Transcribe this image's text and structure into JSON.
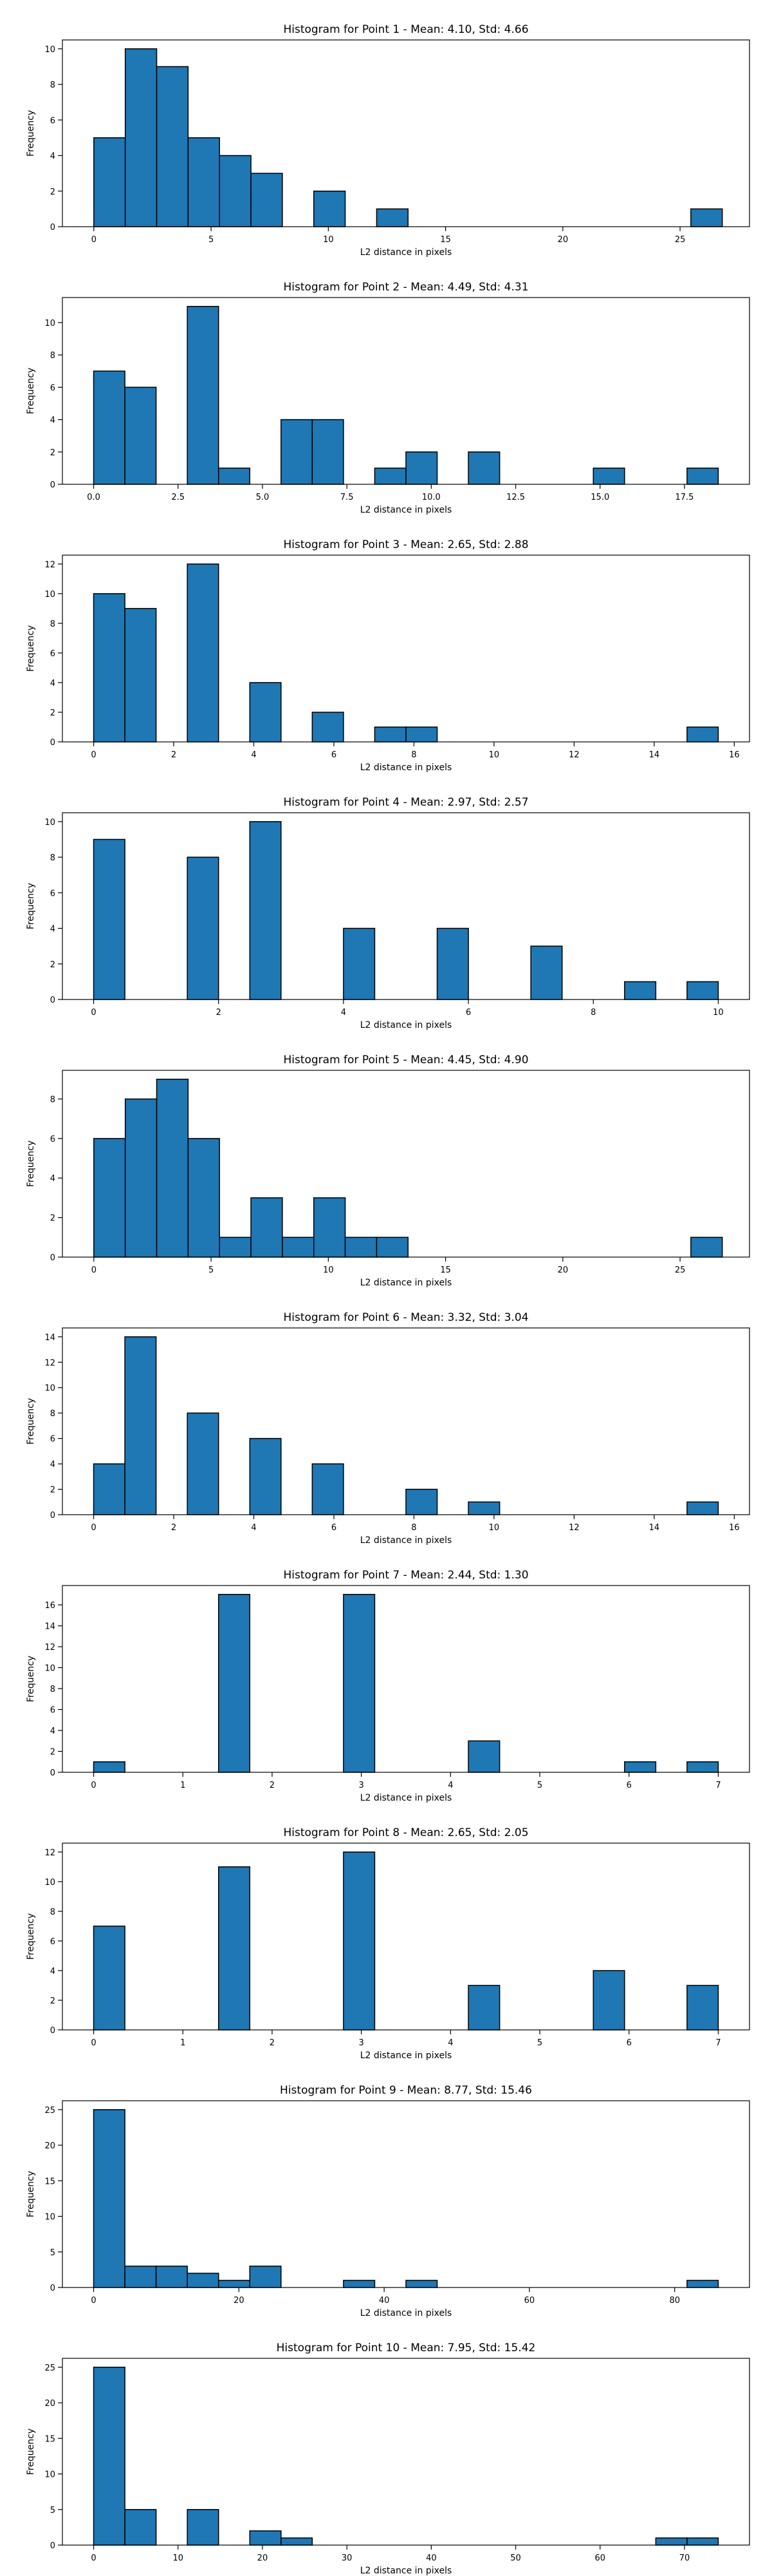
{
  "chart_data": [
    {
      "type": "bar",
      "title": "Histogram for Point 1 - Mean: 4.10, Std: 4.66",
      "xlabel": "L2 distance in pixels",
      "ylabel": "Frequency",
      "xlim": [
        -1.34,
        27.96
      ],
      "ylim": [
        0,
        10.5
      ],
      "xticks": [
        0,
        5,
        10,
        15,
        20,
        25
      ],
      "xtick_labels": [
        "0",
        "5",
        "10",
        "15",
        "20",
        "25"
      ],
      "yticks": [
        0,
        2,
        4,
        6,
        8,
        10
      ],
      "ytick_labels": [
        "0",
        "2",
        "4",
        "6",
        "8",
        "10"
      ],
      "bins": [
        0,
        1.34,
        2.68,
        4.02,
        5.36,
        6.7,
        8.04,
        9.38,
        10.72,
        12.06,
        13.4,
        14.74,
        16.08,
        17.42,
        18.76,
        20.1,
        21.44,
        22.78,
        24.12,
        25.46,
        26.8
      ],
      "counts": [
        5,
        10,
        9,
        5,
        4,
        3,
        0,
        2,
        0,
        1,
        0,
        0,
        0,
        0,
        0,
        0,
        0,
        0,
        0,
        1
      ],
      "color": "#1f77b4",
      "grid": false
    },
    {
      "type": "bar",
      "title": "Histogram for Point 2 - Mean: 4.49, Std: 4.31",
      "xlabel": "L2 distance in pixels",
      "ylabel": "Frequency",
      "xlim": [
        -0.925,
        19.425
      ],
      "ylim": [
        0,
        11.55
      ],
      "xticks": [
        0,
        2.5,
        5,
        7.5,
        10,
        12.5,
        15,
        17.5
      ],
      "xtick_labels": [
        "0.0",
        "2.5",
        "5.0",
        "7.5",
        "10.0",
        "12.5",
        "15.0",
        "17.5"
      ],
      "yticks": [
        0,
        2,
        4,
        6,
        8,
        10
      ],
      "ytick_labels": [
        "0",
        "2",
        "4",
        "6",
        "8",
        "10"
      ],
      "bins": [
        0,
        0.925,
        1.85,
        2.775,
        3.7,
        4.625,
        5.55,
        6.475,
        7.4,
        8.325,
        9.25,
        10.175,
        11.1,
        12.025,
        12.95,
        13.875,
        14.8,
        15.725,
        16.65,
        17.575,
        18.5
      ],
      "counts": [
        7,
        6,
        0,
        11,
        1,
        0,
        4,
        4,
        0,
        1,
        2,
        0,
        2,
        0,
        0,
        0,
        1,
        0,
        0,
        1
      ],
      "color": "#1f77b4",
      "grid": false
    },
    {
      "type": "bar",
      "title": "Histogram for Point 3 - Mean: 2.65, Std: 2.88",
      "xlabel": "L2 distance in pixels",
      "ylabel": "Frequency",
      "xlim": [
        -0.78,
        16.38
      ],
      "ylim": [
        0,
        12.6
      ],
      "xticks": [
        0,
        2,
        4,
        6,
        8,
        10,
        12,
        14,
        16
      ],
      "xtick_labels": [
        "0",
        "2",
        "4",
        "6",
        "8",
        "10",
        "12",
        "14",
        "16"
      ],
      "yticks": [
        0,
        2,
        4,
        6,
        8,
        10,
        12
      ],
      "ytick_labels": [
        "0",
        "2",
        "4",
        "6",
        "8",
        "10",
        "12"
      ],
      "bins": [
        0,
        0.78,
        1.56,
        2.34,
        3.12,
        3.9,
        4.68,
        5.46,
        6.24,
        7.02,
        7.8,
        8.58,
        9.36,
        10.14,
        10.92,
        11.7,
        12.48,
        13.26,
        14.04,
        14.82,
        15.6
      ],
      "counts": [
        10,
        9,
        0,
        12,
        0,
        4,
        0,
        2,
        0,
        1,
        1,
        0,
        0,
        0,
        0,
        0,
        0,
        0,
        0,
        1
      ],
      "color": "#1f77b4",
      "grid": false
    },
    {
      "type": "bar",
      "title": "Histogram for Point 4 - Mean: 2.97, Std: 2.57",
      "xlabel": "L2 distance in pixels",
      "ylabel": "Frequency",
      "xlim": [
        -0.5,
        10.5
      ],
      "ylim": [
        0,
        10.5
      ],
      "xticks": [
        0,
        2,
        4,
        6,
        8,
        10
      ],
      "xtick_labels": [
        "0",
        "2",
        "4",
        "6",
        "8",
        "10"
      ],
      "yticks": [
        0,
        2,
        4,
        6,
        8,
        10
      ],
      "ytick_labels": [
        "0",
        "2",
        "4",
        "6",
        "8",
        "10"
      ],
      "bins": [
        0,
        0.5,
        1,
        1.5,
        2,
        2.5,
        3,
        3.5,
        4,
        4.5,
        5,
        5.5,
        6,
        6.5,
        7,
        7.5,
        8,
        8.5,
        9,
        9.5,
        10
      ],
      "counts": [
        9,
        0,
        0,
        8,
        0,
        10,
        0,
        0,
        4,
        0,
        0,
        4,
        0,
        0,
        3,
        0,
        0,
        1,
        0,
        1
      ],
      "color": "#1f77b4",
      "grid": false
    },
    {
      "type": "bar",
      "title": "Histogram for Point 5 - Mean: 4.45, Std: 4.90",
      "xlabel": "L2 distance in pixels",
      "ylabel": "Frequency",
      "xlim": [
        -1.34,
        27.96
      ],
      "ylim": [
        0,
        9.45
      ],
      "xticks": [
        0,
        5,
        10,
        15,
        20,
        25
      ],
      "xtick_labels": [
        "0",
        "5",
        "10",
        "15",
        "20",
        "25"
      ],
      "yticks": [
        0,
        2,
        4,
        6,
        8
      ],
      "ytick_labels": [
        "0",
        "2",
        "4",
        "6",
        "8"
      ],
      "bins": [
        0,
        1.34,
        2.68,
        4.02,
        5.36,
        6.7,
        8.04,
        9.38,
        10.72,
        12.06,
        13.4,
        14.74,
        16.08,
        17.42,
        18.76,
        20.1,
        21.44,
        22.78,
        24.12,
        25.46,
        26.8
      ],
      "counts": [
        6,
        8,
        9,
        6,
        1,
        3,
        1,
        3,
        1,
        1,
        0,
        0,
        0,
        0,
        0,
        0,
        0,
        0,
        0,
        1
      ],
      "color": "#1f77b4",
      "grid": false
    },
    {
      "type": "bar",
      "title": "Histogram for Point 6 - Mean: 3.32, Std: 3.04",
      "xlabel": "L2 distance in pixels",
      "ylabel": "Frequency",
      "xlim": [
        -0.78,
        16.38
      ],
      "ylim": [
        0,
        14.7
      ],
      "xticks": [
        0,
        2,
        4,
        6,
        8,
        10,
        12,
        14,
        16
      ],
      "xtick_labels": [
        "0",
        "2",
        "4",
        "6",
        "8",
        "10",
        "12",
        "14",
        "16"
      ],
      "yticks": [
        0,
        2,
        4,
        6,
        8,
        10,
        12,
        14
      ],
      "ytick_labels": [
        "0",
        "2",
        "4",
        "6",
        "8",
        "10",
        "12",
        "14"
      ],
      "bins": [
        0,
        0.78,
        1.56,
        2.34,
        3.12,
        3.9,
        4.68,
        5.46,
        6.24,
        7.02,
        7.8,
        8.58,
        9.36,
        10.14,
        10.92,
        11.7,
        12.48,
        13.26,
        14.04,
        14.82,
        15.6
      ],
      "counts": [
        4,
        14,
        0,
        8,
        0,
        6,
        0,
        4,
        0,
        0,
        2,
        0,
        1,
        0,
        0,
        0,
        0,
        0,
        0,
        1
      ],
      "color": "#1f77b4",
      "grid": false
    },
    {
      "type": "bar",
      "title": "Histogram for Point 7 - Mean: 2.44, Std: 1.30",
      "xlabel": "L2 distance in pixels",
      "ylabel": "Frequency",
      "xlim": [
        -0.35,
        7.35
      ],
      "ylim": [
        0,
        17.85
      ],
      "xticks": [
        0,
        1,
        2,
        3,
        4,
        5,
        6,
        7
      ],
      "xtick_labels": [
        "0",
        "1",
        "2",
        "3",
        "4",
        "5",
        "6",
        "7"
      ],
      "yticks": [
        0,
        2,
        4,
        6,
        8,
        10,
        12,
        14,
        16
      ],
      "ytick_labels": [
        "0",
        "2",
        "4",
        "6",
        "8",
        "10",
        "12",
        "14",
        "16"
      ],
      "bins": [
        0,
        0.35,
        0.7,
        1.05,
        1.4,
        1.75,
        2.1,
        2.45,
        2.8,
        3.15,
        3.5,
        3.85,
        4.2,
        4.55,
        4.9,
        5.25,
        5.6,
        5.95,
        6.3,
        6.65,
        7.0
      ],
      "counts": [
        1,
        0,
        0,
        0,
        17,
        0,
        0,
        0,
        17,
        0,
        0,
        0,
        3,
        0,
        0,
        0,
        0,
        1,
        0,
        1
      ],
      "color": "#1f77b4",
      "grid": false
    },
    {
      "type": "bar",
      "title": "Histogram for Point 8 - Mean: 2.65, Std: 2.05",
      "xlabel": "L2 distance in pixels",
      "ylabel": "Frequency",
      "xlim": [
        -0.35,
        7.35
      ],
      "ylim": [
        0,
        12.6
      ],
      "xticks": [
        0,
        1,
        2,
        3,
        4,
        5,
        6,
        7
      ],
      "xtick_labels": [
        "0",
        "1",
        "2",
        "3",
        "4",
        "5",
        "6",
        "7"
      ],
      "yticks": [
        0,
        2,
        4,
        6,
        8,
        10,
        12
      ],
      "ytick_labels": [
        "0",
        "2",
        "4",
        "6",
        "8",
        "10",
        "12"
      ],
      "bins": [
        0,
        0.35,
        0.7,
        1.05,
        1.4,
        1.75,
        2.1,
        2.45,
        2.8,
        3.15,
        3.5,
        3.85,
        4.2,
        4.55,
        4.9,
        5.25,
        5.6,
        5.95,
        6.3,
        6.65,
        7.0
      ],
      "counts": [
        7,
        0,
        0,
        0,
        11,
        0,
        0,
        0,
        12,
        0,
        0,
        0,
        3,
        0,
        0,
        0,
        4,
        0,
        0,
        3
      ],
      "color": "#1f77b4",
      "grid": false
    },
    {
      "type": "bar",
      "title": "Histogram for Point 9 - Mean: 8.77, Std: 15.46",
      "xlabel": "L2 distance in pixels",
      "ylabel": "Frequency",
      "xlim": [
        -4.3,
        90.3
      ],
      "ylim": [
        0,
        26.25
      ],
      "xticks": [
        0,
        20,
        40,
        60,
        80
      ],
      "xtick_labels": [
        "0",
        "20",
        "40",
        "60",
        "80"
      ],
      "yticks": [
        0,
        5,
        10,
        15,
        20,
        25
      ],
      "ytick_labels": [
        "0",
        "5",
        "10",
        "15",
        "20",
        "25"
      ],
      "bins": [
        0,
        4.3,
        8.6,
        12.9,
        17.2,
        21.5,
        25.8,
        30.1,
        34.4,
        38.7,
        43.0,
        47.3,
        51.6,
        55.9,
        60.2,
        64.5,
        68.8,
        73.1,
        77.4,
        81.7,
        86.0
      ],
      "counts": [
        25,
        3,
        3,
        2,
        1,
        3,
        0,
        0,
        1,
        0,
        1,
        0,
        0,
        0,
        0,
        0,
        0,
        0,
        0,
        1
      ],
      "color": "#1f77b4",
      "grid": false
    },
    {
      "type": "bar",
      "title": "Histogram for Point 10 - Mean: 7.95, Std: 15.42",
      "xlabel": "L2 distance in pixels",
      "ylabel": "Frequency",
      "xlim": [
        -3.7,
        77.7
      ],
      "ylim": [
        0,
        26.25
      ],
      "xticks": [
        0,
        10,
        20,
        30,
        40,
        50,
        60,
        70
      ],
      "xtick_labels": [
        "0",
        "10",
        "20",
        "30",
        "40",
        "50",
        "60",
        "70"
      ],
      "yticks": [
        0,
        5,
        10,
        15,
        20,
        25
      ],
      "ytick_labels": [
        "0",
        "5",
        "10",
        "15",
        "20",
        "25"
      ],
      "bins": [
        0,
        3.7,
        7.4,
        11.1,
        14.8,
        18.5,
        22.2,
        25.9,
        29.6,
        33.3,
        37.0,
        40.7,
        44.4,
        48.1,
        51.8,
        55.5,
        59.2,
        62.9,
        66.6,
        70.3,
        74.0
      ],
      "counts": [
        25,
        5,
        0,
        5,
        0,
        2,
        1,
        0,
        0,
        0,
        0,
        0,
        0,
        0,
        0,
        0,
        0,
        0,
        1,
        1
      ],
      "color": "#1f77b4",
      "grid": false
    }
  ]
}
